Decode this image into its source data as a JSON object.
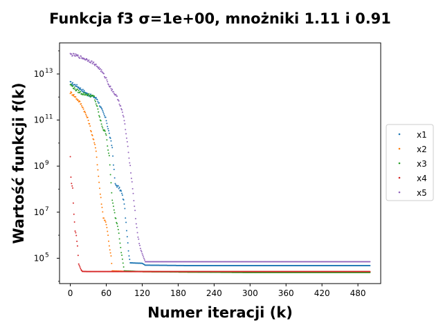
{
  "chart_data": {
    "type": "scatter",
    "title": "Funkcja f3 σ=1e+00, mnożniki 1.11 i 0.91",
    "xlabel": "Numer iteracji (k)",
    "ylabel": "Wartość funkcji f(k)",
    "xlim": [
      -18,
      518
    ],
    "ylim_log10": [
      3.9,
      14.35
    ],
    "yscale": "log",
    "x_ticks": [
      0,
      60,
      120,
      180,
      240,
      300,
      360,
      420,
      480
    ],
    "y_ticks": [
      {
        "exp": 5,
        "base": "10",
        "sup": "5"
      },
      {
        "exp": 7,
        "base": "10",
        "sup": "7"
      },
      {
        "exp": 9,
        "base": "10",
        "sup": "9"
      },
      {
        "exp": 11,
        "base": "10",
        "sup": "11"
      },
      {
        "exp": 13,
        "base": "10",
        "sup": "13"
      }
    ],
    "legend_position": "right",
    "grid": false,
    "series": [
      {
        "name": "x1",
        "color": "#1f77b4",
        "log10_points": [
          [
            0,
            12.62
          ],
          [
            10,
            12.5
          ],
          [
            20,
            12.3
          ],
          [
            30,
            12.1
          ],
          [
            40,
            12.0
          ],
          [
            45,
            11.9
          ],
          [
            50,
            11.6
          ],
          [
            55,
            11.3
          ],
          [
            60,
            11.0
          ],
          [
            65,
            10.4
          ],
          [
            70,
            9.8
          ],
          [
            72,
            9.1
          ],
          [
            75,
            8.2
          ],
          [
            80,
            8.1
          ],
          [
            85,
            7.9
          ],
          [
            90,
            7.4
          ],
          [
            95,
            5.9
          ],
          [
            98,
            5.1
          ],
          [
            100,
            4.8
          ],
          [
            120,
            4.78
          ],
          [
            125,
            4.7
          ],
          [
            200,
            4.68
          ],
          [
            300,
            4.68
          ],
          [
            500,
            4.68
          ]
        ]
      },
      {
        "name": "x2",
        "color": "#ff7f0e",
        "log10_points": [
          [
            0,
            12.2
          ],
          [
            5,
            12.1
          ],
          [
            10,
            11.95
          ],
          [
            15,
            11.8
          ],
          [
            20,
            11.6
          ],
          [
            25,
            11.3
          ],
          [
            30,
            11.0
          ],
          [
            35,
            10.5
          ],
          [
            40,
            10.0
          ],
          [
            43,
            9.7
          ],
          [
            45,
            9.1
          ],
          [
            48,
            8.3
          ],
          [
            50,
            7.8
          ],
          [
            55,
            6.8
          ],
          [
            60,
            6.5
          ],
          [
            62,
            6.2
          ],
          [
            65,
            5.5
          ],
          [
            68,
            5.1
          ],
          [
            70,
            4.45
          ],
          [
            100,
            4.42
          ],
          [
            120,
            4.42
          ],
          [
            200,
            4.4
          ],
          [
            300,
            4.4
          ],
          [
            500,
            4.4
          ]
        ]
      },
      {
        "name": "x3",
        "color": "#2ca02c",
        "log10_points": [
          [
            0,
            12.55
          ],
          [
            10,
            12.3
          ],
          [
            20,
            12.15
          ],
          [
            30,
            12.1
          ],
          [
            40,
            12.0
          ],
          [
            42,
            11.8
          ],
          [
            45,
            11.55
          ],
          [
            50,
            11.0
          ],
          [
            55,
            10.6
          ],
          [
            60,
            10.4
          ],
          [
            62,
            9.9
          ],
          [
            65,
            9.4
          ],
          [
            70,
            7.5
          ],
          [
            75,
            6.8
          ],
          [
            80,
            6.3
          ],
          [
            85,
            5.3
          ],
          [
            90,
            4.45
          ],
          [
            120,
            4.42
          ],
          [
            200,
            4.4
          ],
          [
            300,
            4.38
          ],
          [
            500,
            4.38
          ]
        ]
      },
      {
        "name": "x4",
        "color": "#d62728",
        "log10_points": [
          [
            0,
            9.4
          ],
          [
            1,
            8.5
          ],
          [
            2,
            8.3
          ],
          [
            4,
            8.0
          ],
          [
            6,
            6.9
          ],
          [
            8,
            6.2
          ],
          [
            10,
            6.0
          ],
          [
            12,
            5.5
          ],
          [
            14,
            4.75
          ],
          [
            18,
            4.5
          ],
          [
            20,
            4.43
          ],
          [
            30,
            4.42
          ],
          [
            100,
            4.42
          ],
          [
            200,
            4.42
          ],
          [
            300,
            4.42
          ],
          [
            500,
            4.42
          ]
        ]
      },
      {
        "name": "x5",
        "color": "#9467bd",
        "log10_points": [
          [
            0,
            13.85
          ],
          [
            10,
            13.8
          ],
          [
            20,
            13.7
          ],
          [
            30,
            13.6
          ],
          [
            40,
            13.45
          ],
          [
            50,
            13.2
          ],
          [
            55,
            13.0
          ],
          [
            60,
            12.8
          ],
          [
            65,
            12.5
          ],
          [
            70,
            12.3
          ],
          [
            75,
            12.1
          ],
          [
            80,
            11.9
          ],
          [
            85,
            11.5
          ],
          [
            90,
            11.0
          ],
          [
            95,
            10.0
          ],
          [
            100,
            9.0
          ],
          [
            105,
            7.8
          ],
          [
            110,
            6.5
          ],
          [
            115,
            5.6
          ],
          [
            120,
            5.2
          ],
          [
            125,
            4.85
          ],
          [
            200,
            4.85
          ],
          [
            300,
            4.85
          ],
          [
            500,
            4.85
          ]
        ]
      }
    ]
  }
}
